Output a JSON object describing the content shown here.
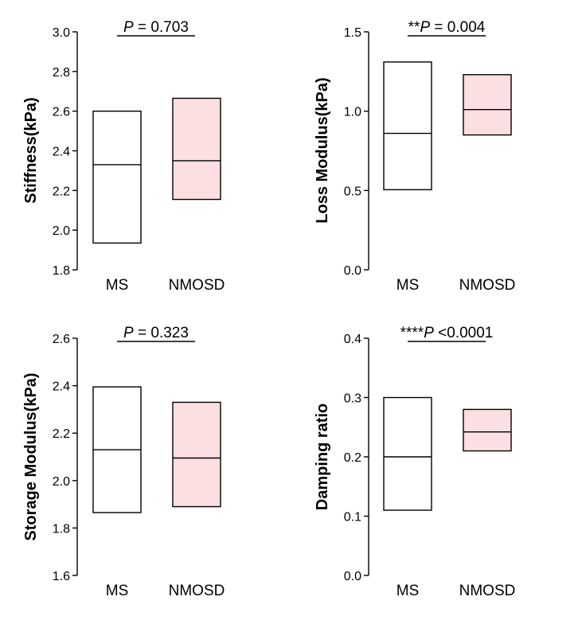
{
  "chart_data": [
    {
      "type": "box",
      "id": "stiffness",
      "ylabel": "Stiffness(kPa)",
      "ylim": [
        1.8,
        3.0
      ],
      "yticks": [
        1.8,
        2.0,
        2.2,
        2.4,
        2.6,
        2.8,
        3.0
      ],
      "tick_labels": [
        "1.8",
        "2.0",
        "2.2",
        "2.4",
        "2.6",
        "2.8",
        "3.0"
      ],
      "categories": [
        "MS",
        "NMOSD"
      ],
      "boxes": [
        {
          "name": "MS",
          "low": 1.935,
          "median": 2.33,
          "high": 2.6,
          "fill": "#ffffff"
        },
        {
          "name": "NMOSD",
          "low": 2.155,
          "median": 2.35,
          "high": 2.665,
          "fill": "#fcdfe0"
        }
      ],
      "annotation": {
        "stars": "",
        "p": "P",
        "rest": " = 0.703"
      }
    },
    {
      "type": "box",
      "id": "loss",
      "ylabel": "Loss Modulus(kPa)",
      "ylim": [
        0.0,
        1.5
      ],
      "yticks": [
        0.0,
        0.5,
        1.0,
        1.5
      ],
      "tick_labels": [
        "0.0",
        "0.5",
        "1.0",
        "1.5"
      ],
      "categories": [
        "MS",
        "NMOSD"
      ],
      "boxes": [
        {
          "name": "MS",
          "low": 0.505,
          "median": 0.86,
          "high": 1.31,
          "fill": "#ffffff"
        },
        {
          "name": "NMOSD",
          "low": 0.85,
          "median": 1.01,
          "high": 1.23,
          "fill": "#fcdfe0"
        }
      ],
      "annotation": {
        "stars": "**",
        "p": "P",
        "rest": " = 0.004"
      }
    },
    {
      "type": "box",
      "id": "storage",
      "ylabel": "Storage Modulus(kPa)",
      "ylim": [
        1.6,
        2.6
      ],
      "yticks": [
        1.6,
        1.8,
        2.0,
        2.2,
        2.4,
        2.6
      ],
      "tick_labels": [
        "1.6",
        "1.8",
        "2.0",
        "2.2",
        "2.4",
        "2.6"
      ],
      "categories": [
        "MS",
        "NMOSD"
      ],
      "boxes": [
        {
          "name": "MS",
          "low": 1.865,
          "median": 2.13,
          "high": 2.395,
          "fill": "#ffffff"
        },
        {
          "name": "NMOSD",
          "low": 1.89,
          "median": 2.095,
          "high": 2.33,
          "fill": "#fcdfe0"
        }
      ],
      "annotation": {
        "stars": "",
        "p": "P",
        "rest": " = 0.323"
      }
    },
    {
      "type": "box",
      "id": "damping",
      "ylabel": "Damping ratio",
      "ylim": [
        0.0,
        0.4
      ],
      "yticks": [
        0.0,
        0.1,
        0.2,
        0.3,
        0.4
      ],
      "tick_labels": [
        "0.0",
        "0.1",
        "0.2",
        "0.3",
        "0.4"
      ],
      "categories": [
        "MS",
        "NMOSD"
      ],
      "boxes": [
        {
          "name": "MS",
          "low": 0.11,
          "median": 0.2,
          "high": 0.3,
          "fill": "#ffffff"
        },
        {
          "name": "NMOSD",
          "low": 0.21,
          "median": 0.242,
          "high": 0.28,
          "fill": "#fcdfe0"
        }
      ],
      "annotation": {
        "stars": "****",
        "p": "P",
        "rest": " <0.0001"
      }
    }
  ]
}
